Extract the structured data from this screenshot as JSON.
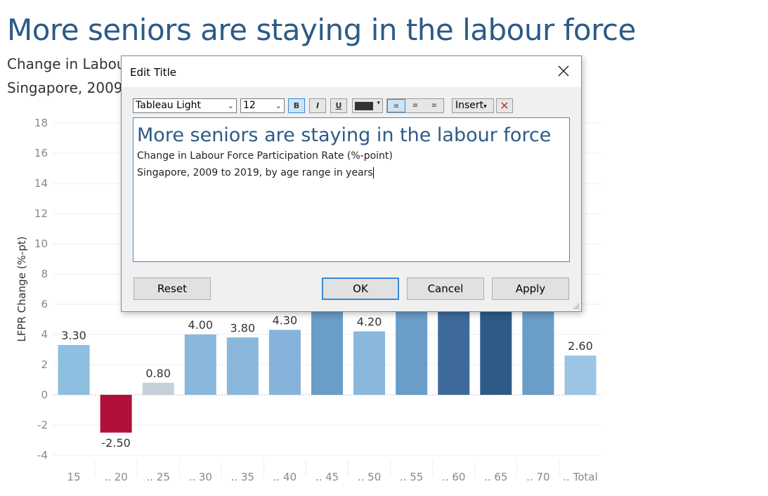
{
  "page": {
    "title": "More seniors are staying in the labour force",
    "subtitle_line1": "Change in Labour Force Participation Rate (%-point)",
    "subtitle_line2": "Singapore, 2009 to 2019, by age range in years"
  },
  "dialog": {
    "title": "Edit Title",
    "close_icon": "close-icon",
    "toolbar": {
      "font": "Tableau Light",
      "size": "12",
      "bold": "B",
      "italic": "I",
      "underline": "U",
      "color": "#333333",
      "insert_label": "Insert",
      "clear_icon": "clear-format-icon"
    },
    "editor": {
      "title_text": "More seniors are staying in the labour force",
      "line1": "Change in Labour Force Participation Rate (%-point)",
      "line2": "Singapore, 2009 to 2019, by age range in years"
    },
    "buttons": {
      "reset": "Reset",
      "ok": "OK",
      "cancel": "Cancel",
      "apply": "Apply"
    }
  },
  "chart_data": {
    "type": "bar",
    "ylabel": "LFPR Change (%-pt)",
    "ylim": [
      -4,
      18
    ],
    "yticks": [
      -4,
      -2,
      0,
      2,
      4,
      6,
      8,
      10,
      12,
      14,
      16,
      18
    ],
    "grid": true,
    "categories": [
      "15",
      ".. 20",
      ".. 25",
      ".. 30",
      ".. 35",
      ".. 40",
      ".. 45",
      ".. 50",
      ".. 55",
      ".. 60",
      ".. 65",
      ".. 70",
      ".. Total"
    ],
    "values": [
      3.3,
      -2.5,
      0.8,
      4.0,
      3.8,
      4.3,
      null,
      4.2,
      null,
      null,
      null,
      null,
      2.6
    ],
    "labels": [
      "3.30",
      "-2.50",
      "0.80",
      "4.00",
      "3.80",
      "4.30",
      "",
      "4.20",
      "",
      "",
      "",
      "",
      "2.60"
    ],
    "colors": [
      "#8fbfe0",
      "#b0103a",
      "#c5d0da",
      "#8ab8dd",
      "#8ab8dd",
      "#85b3da",
      "#6a9dc8",
      "#8ab8dd",
      "#6a9dc8",
      "#3e6a9a",
      "#2d5a87",
      "#6a9dc8",
      "#9cc4e4"
    ]
  }
}
